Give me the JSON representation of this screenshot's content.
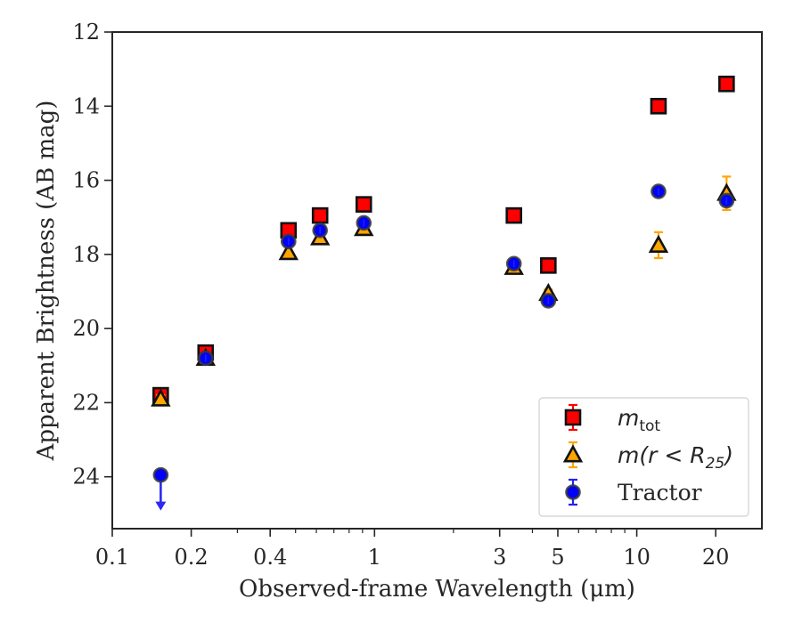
{
  "chart_data": {
    "type": "scatter",
    "title": "",
    "xlabel": "Observed-frame Wavelength (μm)",
    "ylabel": "Apparent Brightness (AB mag)",
    "xscale": "log",
    "xlim": [
      0.1,
      30
    ],
    "ylim": [
      25.4,
      12
    ],
    "y_inverted": true,
    "xticks": [
      {
        "value": 0.1,
        "label": "0.1"
      },
      {
        "value": 0.2,
        "label": "0.2"
      },
      {
        "value": 0.4,
        "label": "0.4"
      },
      {
        "value": 1,
        "label": "1"
      },
      {
        "value": 3,
        "label": "3"
      },
      {
        "value": 5,
        "label": "5"
      },
      {
        "value": 10,
        "label": "10"
      },
      {
        "value": 20,
        "label": "20"
      }
    ],
    "yticks": [
      {
        "value": 12,
        "label": "12"
      },
      {
        "value": 14,
        "label": "14"
      },
      {
        "value": 16,
        "label": "16"
      },
      {
        "value": 18,
        "label": "18"
      },
      {
        "value": 20,
        "label": "20"
      },
      {
        "value": 22,
        "label": "22"
      },
      {
        "value": 24,
        "label": "24"
      }
    ],
    "grid": false,
    "legend_position": "lower-right",
    "series": [
      {
        "name": "m_tot",
        "legend_main": "m",
        "legend_sub": "tot",
        "marker": "square",
        "color": "#ff0000",
        "edgecolor": "#111111",
        "errorcolor": "#ff0000",
        "points": [
          {
            "x": 0.153,
            "y": 21.8,
            "err": 0.1
          },
          {
            "x": 0.227,
            "y": 20.65,
            "err": 0.1
          },
          {
            "x": 0.47,
            "y": 17.35,
            "err": 0.05
          },
          {
            "x": 0.62,
            "y": 16.95,
            "err": 0.05
          },
          {
            "x": 0.91,
            "y": 16.65,
            "err": 0.05
          },
          {
            "x": 3.4,
            "y": 16.95,
            "err": 0.05
          },
          {
            "x": 4.6,
            "y": 18.3,
            "err": 0.05
          },
          {
            "x": 12.1,
            "y": 14.0,
            "err": 0.05
          },
          {
            "x": 22.0,
            "y": 13.4,
            "err": 0.05
          }
        ]
      },
      {
        "name": "m(r < R_25)",
        "legend_main": "m(r < R",
        "legend_sub": "25",
        "legend_tail": ")",
        "marker": "triangle",
        "color": "#ffa500",
        "edgecolor": "#111111",
        "errorcolor": "#ffa500",
        "points": [
          {
            "x": 0.153,
            "y": 21.9,
            "err": 0.1
          },
          {
            "x": 0.227,
            "y": 20.8,
            "err": 0.1
          },
          {
            "x": 0.47,
            "y": 17.95,
            "err": 0.05
          },
          {
            "x": 0.62,
            "y": 17.55,
            "err": 0.05
          },
          {
            "x": 0.91,
            "y": 17.3,
            "err": 0.05
          },
          {
            "x": 3.4,
            "y": 18.35,
            "err": 0.05
          },
          {
            "x": 4.6,
            "y": 19.05,
            "err": 0.1
          },
          {
            "x": 12.1,
            "y": 17.75,
            "err": 0.35
          },
          {
            "x": 22.0,
            "y": 16.35,
            "err": 0.45
          }
        ]
      },
      {
        "name": "Tractor",
        "legend_main": "Tractor",
        "marker": "circle",
        "color": "#0000ff",
        "edgecolor": "#3a3a3a",
        "errorcolor": "#2222ee",
        "points": [
          {
            "x": 0.153,
            "y": 23.95,
            "err": 0,
            "upper_limit": true
          },
          {
            "x": 0.227,
            "y": 20.8,
            "err": 0.05
          },
          {
            "x": 0.47,
            "y": 17.65,
            "err": 0.05
          },
          {
            "x": 0.62,
            "y": 17.35,
            "err": 0.05
          },
          {
            "x": 0.91,
            "y": 17.15,
            "err": 0.05
          },
          {
            "x": 3.4,
            "y": 18.25,
            "err": 0.05
          },
          {
            "x": 4.6,
            "y": 19.25,
            "err": 0.05
          },
          {
            "x": 12.1,
            "y": 16.3,
            "err": 0.05
          },
          {
            "x": 22.0,
            "y": 16.55,
            "err": 0.1
          }
        ]
      }
    ]
  }
}
